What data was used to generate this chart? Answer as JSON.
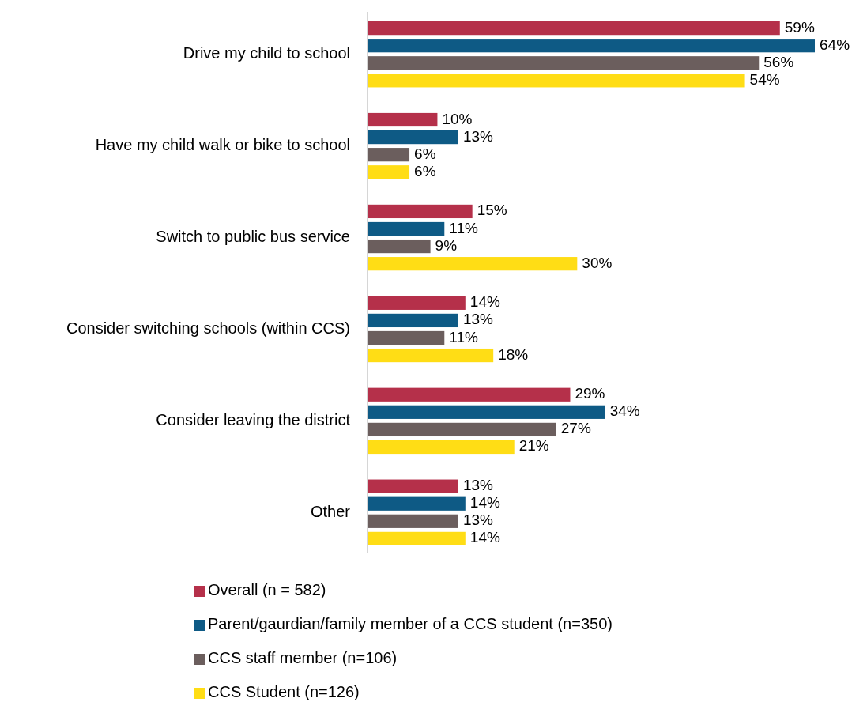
{
  "chart_data": {
    "type": "bar",
    "orientation": "horizontal",
    "categories": [
      "Drive my child to school",
      "Have my child walk or bike to school",
      "Switch to public bus service",
      "Consider switching schools (within CCS)",
      "Consider leaving the district",
      "Other"
    ],
    "series": [
      {
        "name": "Overall (n = 582)",
        "color": "#b5304a",
        "values": [
          59,
          10,
          15,
          14,
          29,
          13
        ],
        "value_labels": [
          "59%",
          "10%",
          "15%",
          "14%",
          "29%",
          "13%"
        ]
      },
      {
        "name": "Parent/gaurdian/family member of a CCS student (n=350)",
        "color": "#0e5a85",
        "values": [
          64,
          13,
          11,
          13,
          34,
          14
        ],
        "value_labels": [
          "64%",
          "13%",
          "11%",
          "13%",
          "34%",
          "14%"
        ]
      },
      {
        "name": "CCS staff member (n=106)",
        "color": "#6b5e5d",
        "values": [
          56,
          6,
          9,
          11,
          27,
          13
        ],
        "value_labels": [
          "56%",
          "6%",
          "9%",
          "11%",
          "27%",
          "13%"
        ]
      },
      {
        "name": "CCS Student (n=126)",
        "color": "#ffdd15",
        "values": [
          54,
          6,
          30,
          18,
          21,
          14
        ],
        "value_labels": [
          "54%",
          "6%",
          "30%",
          "18%",
          "21%",
          "14%"
        ]
      }
    ],
    "legend": "bottom"
  }
}
